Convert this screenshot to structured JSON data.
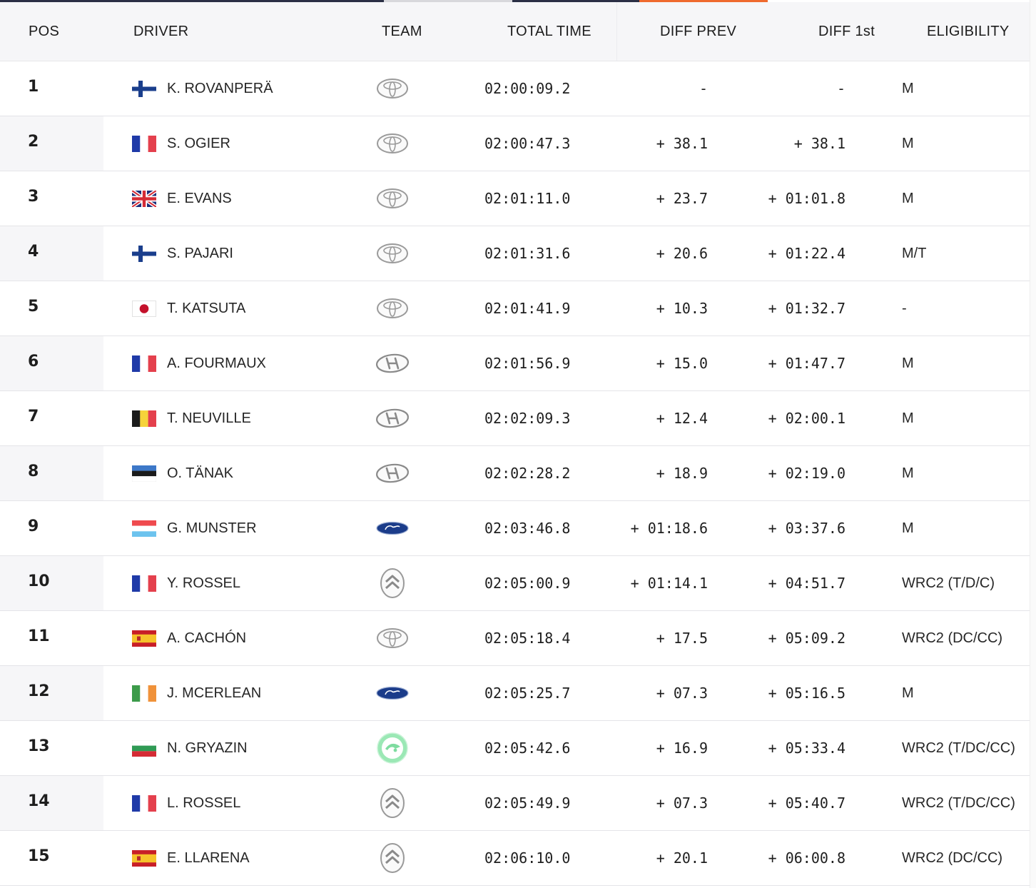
{
  "colors": {
    "tab_dark": "#2b2f45",
    "tab_light": "#d8d8dc",
    "tab_accent": "#ef6a2e",
    "header_bg": "#f6f6f8",
    "row_alt_bg": "#f6f6f8"
  },
  "header": {
    "pos": "POS",
    "driver": "DRIVER",
    "team": "TEAM",
    "total_time": "TOTAL TIME",
    "diff_prev": "DIFF PREV",
    "diff_first": "DIFF 1st",
    "eligibility": "ELIGIBILITY"
  },
  "rows": [
    {
      "pos": "1",
      "flag": "finland-flag",
      "driver": "K. ROVANPERÄ",
      "team": "toyota-logo",
      "total": "02:00:09.2",
      "diff_prev": "-",
      "diff_first": "-",
      "eligibility": "M"
    },
    {
      "pos": "2",
      "flag": "france-flag",
      "driver": "S. OGIER",
      "team": "toyota-logo",
      "total": "02:00:47.3",
      "diff_prev": "+ 38.1",
      "diff_first": "+ 38.1",
      "eligibility": "M"
    },
    {
      "pos": "3",
      "flag": "uk-flag",
      "driver": "E. EVANS",
      "team": "toyota-logo",
      "total": "02:01:11.0",
      "diff_prev": "+ 23.7",
      "diff_first": "+ 01:01.8",
      "eligibility": "M"
    },
    {
      "pos": "4",
      "flag": "finland-flag",
      "driver": "S. PAJARI",
      "team": "toyota-logo",
      "total": "02:01:31.6",
      "diff_prev": "+ 20.6",
      "diff_first": "+ 01:22.4",
      "eligibility": "M/T"
    },
    {
      "pos": "5",
      "flag": "japan-flag",
      "driver": "T. KATSUTA",
      "team": "toyota-logo",
      "total": "02:01:41.9",
      "diff_prev": "+ 10.3",
      "diff_first": "+ 01:32.7",
      "eligibility": "-"
    },
    {
      "pos": "6",
      "flag": "france-flag",
      "driver": "A. FOURMAUX",
      "team": "hyundai-logo",
      "total": "02:01:56.9",
      "diff_prev": "+ 15.0",
      "diff_first": "+ 01:47.7",
      "eligibility": "M"
    },
    {
      "pos": "7",
      "flag": "belgium-flag",
      "driver": "T. NEUVILLE",
      "team": "hyundai-logo",
      "total": "02:02:09.3",
      "diff_prev": "+ 12.4",
      "diff_first": "+ 02:00.1",
      "eligibility": "M"
    },
    {
      "pos": "8",
      "flag": "estonia-flag",
      "driver": "O. TÄNAK",
      "team": "hyundai-logo",
      "total": "02:02:28.2",
      "diff_prev": "+ 18.9",
      "diff_first": "+ 02:19.0",
      "eligibility": "M"
    },
    {
      "pos": "9",
      "flag": "luxembourg-flag",
      "driver": "G. MUNSTER",
      "team": "ford-logo",
      "total": "02:03:46.8",
      "diff_prev": "+ 01:18.6",
      "diff_first": "+ 03:37.6",
      "eligibility": "M"
    },
    {
      "pos": "10",
      "flag": "france-flag",
      "driver": "Y. ROSSEL",
      "team": "citroen-logo",
      "total": "02:05:00.9",
      "diff_prev": "+ 01:14.1",
      "diff_first": "+ 04:51.7",
      "eligibility": "WRC2 (T/D/C)"
    },
    {
      "pos": "11",
      "flag": "spain-flag",
      "driver": "A. CACHÓN",
      "team": "toyota-logo",
      "total": "02:05:18.4",
      "diff_prev": "+ 17.5",
      "diff_first": "+ 05:09.2",
      "eligibility": "WRC2 (DC/CC)"
    },
    {
      "pos": "12",
      "flag": "ireland-flag",
      "driver": "J. MCERLEAN",
      "team": "ford-logo",
      "total": "02:05:25.7",
      "diff_prev": "+ 07.3",
      "diff_first": "+ 05:16.5",
      "eligibility": "M"
    },
    {
      "pos": "13",
      "flag": "bulgaria-flag",
      "driver": "N. GRYAZIN",
      "team": "skoda-logo",
      "total": "02:05:42.6",
      "diff_prev": "+ 16.9",
      "diff_first": "+ 05:33.4",
      "eligibility": "WRC2 (T/DC/CC)"
    },
    {
      "pos": "14",
      "flag": "france-flag",
      "driver": "L. ROSSEL",
      "team": "citroen-logo",
      "total": "02:05:49.9",
      "diff_prev": "+ 07.3",
      "diff_first": "+ 05:40.7",
      "eligibility": "WRC2 (T/DC/CC)"
    },
    {
      "pos": "15",
      "flag": "spain-flag",
      "driver": "E. LLARENA",
      "team": "citroen-logo",
      "total": "02:06:10.0",
      "diff_prev": "+ 20.1",
      "diff_first": "+ 06:00.8",
      "eligibility": "WRC2 (DC/CC)"
    }
  ]
}
